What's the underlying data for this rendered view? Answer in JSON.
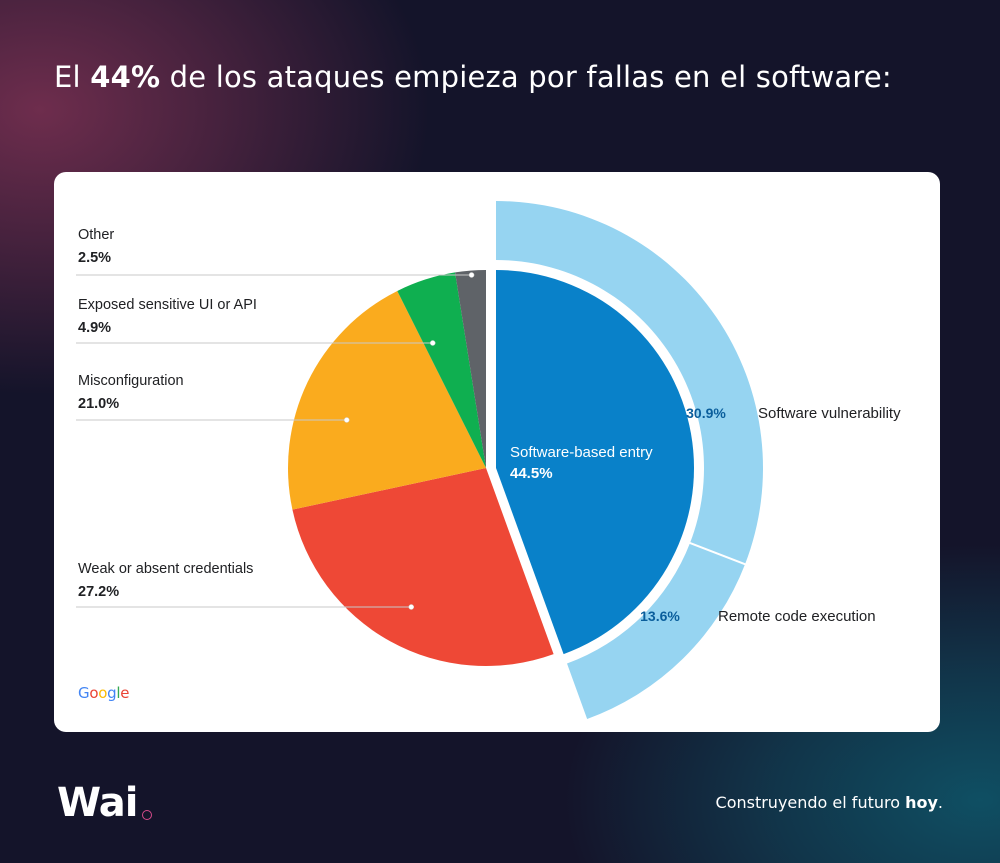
{
  "headline": {
    "pre": "El ",
    "bold": "44%",
    "post": " de los ataques empieza por fallas en el software:"
  },
  "brand": {
    "name": "Wai"
  },
  "tagline": {
    "pre": "Construyendo el futuro ",
    "bold": "hoy",
    "post": "."
  },
  "logo": {
    "letters": [
      "G",
      "o",
      "o",
      "g",
      "l",
      "e"
    ],
    "colors": [
      "#4285F4",
      "#EA4335",
      "#FBBC05",
      "#4285F4",
      "#34A853",
      "#EA4335"
    ]
  },
  "chart_data": {
    "type": "pie",
    "title": "",
    "slices": [
      {
        "label": "Software-based entry",
        "value": 44.5,
        "display": "44.5%",
        "color": "#0981C9"
      },
      {
        "label": "Weak or absent credentials",
        "value": 27.2,
        "display": "27.2%",
        "color": "#EE4836"
      },
      {
        "label": "Misconfiguration",
        "value": 21.0,
        "display": "21.0%",
        "color": "#FAAB1E"
      },
      {
        "label": "Exposed sensitive UI or API",
        "value": 4.9,
        "display": "4.9%",
        "color": "#0FAF50"
      },
      {
        "label": "Other",
        "value": 2.5,
        "display": "2.5%",
        "color": "#5F6368"
      }
    ],
    "outer_ring": {
      "parent": "Software-based entry",
      "color": "#96D4F1",
      "segments": [
        {
          "label": "Software vulnerability",
          "value": 30.9,
          "display": "30.9%"
        },
        {
          "label": "Remote code execution",
          "value": 13.6,
          "display": "13.6%"
        }
      ]
    }
  }
}
